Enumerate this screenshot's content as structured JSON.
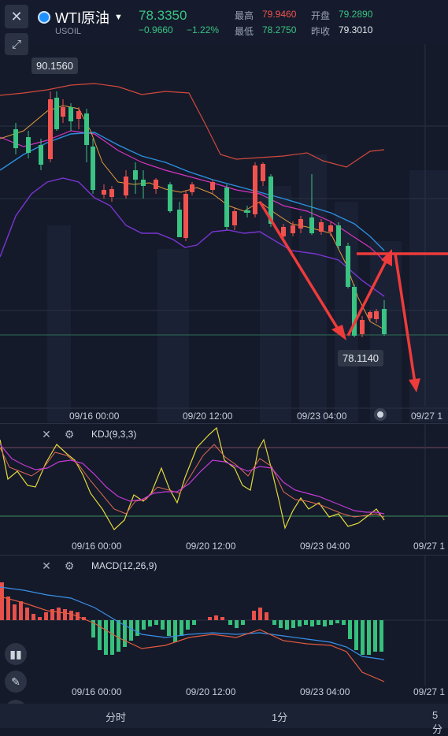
{
  "header": {
    "close_icon": "close-icon",
    "fullscreen_icon": "expand-icon",
    "symbol_name": "WTI原油",
    "symbol_code": "USOIL",
    "price": "78.3350",
    "change": "−0.9660",
    "change_pct": "−1.22%",
    "high_label": "最高",
    "high_value": "79.9460",
    "open_label": "开盘",
    "open_value": "79.2890",
    "low_label": "最低",
    "low_value": "78.2750",
    "prev_label": "昨收",
    "prev_value": "79.3010",
    "colors": {
      "up": "#f0534f",
      "down": "#3ac383"
    }
  },
  "main_chart": {
    "max_label": "90.1560",
    "min_label": "78.1140",
    "dates": [
      "09/16 00:00",
      "09/20 12:00",
      "09/23 04:00",
      "09/27 1"
    ]
  },
  "kdj": {
    "title": "KDJ(9,3,3)",
    "dates": [
      "09/16 00:00",
      "09/20 12:00",
      "09/23 04:00",
      "09/27 1"
    ]
  },
  "macd": {
    "title": "MACD(12,26,9)",
    "dates": [
      "09/16 00:00",
      "09/20 12:00",
      "09/23 04:00",
      "09/27 1"
    ]
  },
  "bottom_tabs": [
    "分时",
    "1分",
    "5分"
  ],
  "left_tools": [
    "candlestick-icon",
    "pencil-icon",
    "indicator-icon"
  ]
}
